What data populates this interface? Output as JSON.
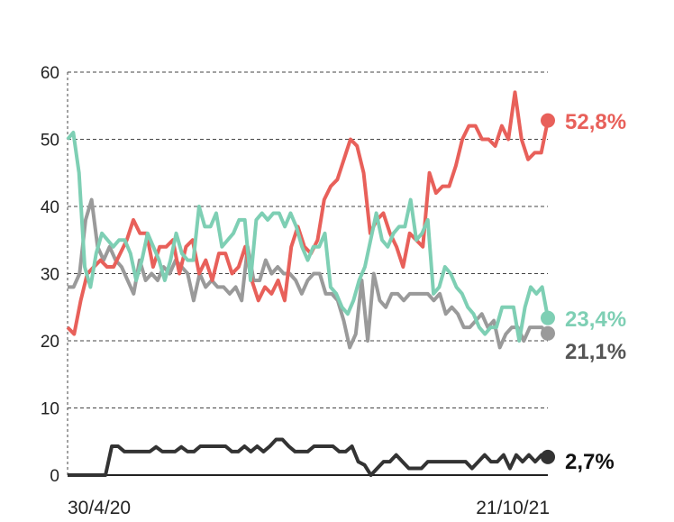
{
  "chart_data": {
    "type": "line",
    "title": "",
    "xlabel": "",
    "ylabel": "",
    "ylim": [
      0,
      60
    ],
    "yticks": [
      "0",
      "10",
      "20",
      "30",
      "40",
      "50",
      "60"
    ],
    "x_start_label": "30/4/20",
    "x_end_label": "21/10/21",
    "grid": true,
    "series": [
      {
        "name": "red",
        "color": "#e8605a",
        "end_label": "52,8%",
        "label_color": "#e8605a",
        "values": [
          22,
          21,
          26,
          30,
          31,
          32,
          31,
          31,
          33,
          35,
          38,
          36,
          36,
          31,
          34,
          34,
          35,
          30,
          34,
          35,
          30,
          32,
          29,
          33,
          33,
          30,
          31,
          34,
          29,
          26,
          28,
          27,
          29,
          26,
          34,
          37,
          34,
          33,
          35,
          41,
          43,
          44,
          47,
          50,
          49,
          45,
          36,
          38,
          39,
          36,
          34,
          31,
          36,
          35,
          34,
          45,
          42,
          43,
          43,
          46,
          50,
          52,
          52,
          50,
          50,
          49,
          52,
          50,
          57,
          50,
          47,
          48,
          48,
          52.8
        ]
      },
      {
        "name": "green",
        "color": "#7ecfb4",
        "end_label": "23,4%",
        "label_color": "#7ecfb4",
        "values": [
          50,
          51,
          45,
          31,
          28,
          33,
          36,
          35,
          34,
          35,
          35,
          33,
          29,
          32,
          36,
          34,
          32,
          29,
          32,
          36,
          33,
          32,
          32,
          40,
          37,
          37,
          39,
          34,
          35,
          36,
          38,
          38,
          29,
          38,
          39,
          38,
          39,
          39,
          37,
          39,
          37,
          34,
          32,
          34,
          34,
          36,
          28,
          27,
          25,
          24,
          26,
          29,
          31,
          35,
          39,
          35,
          34,
          36,
          37,
          37,
          41,
          35,
          36,
          38,
          27,
          28,
          31,
          30,
          28,
          27,
          25,
          24,
          22,
          21,
          22,
          22,
          25,
          25,
          25,
          20,
          25,
          28,
          27,
          28,
          23.4
        ]
      },
      {
        "name": "gray",
        "color": "#9a9a9a",
        "end_label": "21,1%",
        "label_color": "#555555",
        "values": [
          28,
          28,
          30,
          38,
          41,
          34,
          32,
          34,
          32,
          31,
          29,
          27,
          32,
          29,
          30,
          29,
          31,
          30,
          32,
          31,
          30,
          26,
          30,
          28,
          29,
          28,
          28,
          27,
          28,
          26,
          34,
          29,
          29,
          32,
          30,
          31,
          30,
          30,
          29,
          27,
          29,
          30,
          30,
          27,
          27,
          26,
          23,
          19,
          21,
          29,
          20,
          30,
          26,
          25,
          27,
          27,
          26,
          27,
          27,
          27,
          27,
          26,
          27,
          24,
          25,
          24,
          22,
          22,
          23,
          24,
          22,
          23,
          19,
          21,
          22,
          22,
          20,
          22,
          22,
          22,
          21.1
        ]
      },
      {
        "name": "black",
        "color": "#333333",
        "end_label": "2,7%",
        "label_color": "#111111",
        "values": [
          0,
          0,
          0,
          0,
          0,
          0,
          0,
          4.3,
          4.3,
          3.5,
          3.5,
          3.5,
          3.5,
          3.5,
          4.2,
          3.5,
          3.5,
          3.5,
          4.2,
          3.5,
          3.5,
          4.3,
          4.3,
          4.3,
          4.3,
          4.3,
          3.5,
          3.5,
          4.3,
          3.5,
          4.3,
          3.5,
          4.3,
          5.3,
          5.3,
          4.3,
          3.5,
          3.5,
          3.5,
          4.3,
          4.3,
          4.3,
          4.3,
          3.5,
          3.5,
          4.3,
          2,
          1.5,
          0,
          1,
          2,
          2,
          3,
          2,
          1,
          1,
          1,
          2,
          2,
          2,
          2,
          2,
          2,
          2,
          1,
          2,
          3,
          2,
          2,
          3,
          1,
          3,
          2,
          3,
          2,
          3,
          2.7
        ]
      }
    ]
  }
}
